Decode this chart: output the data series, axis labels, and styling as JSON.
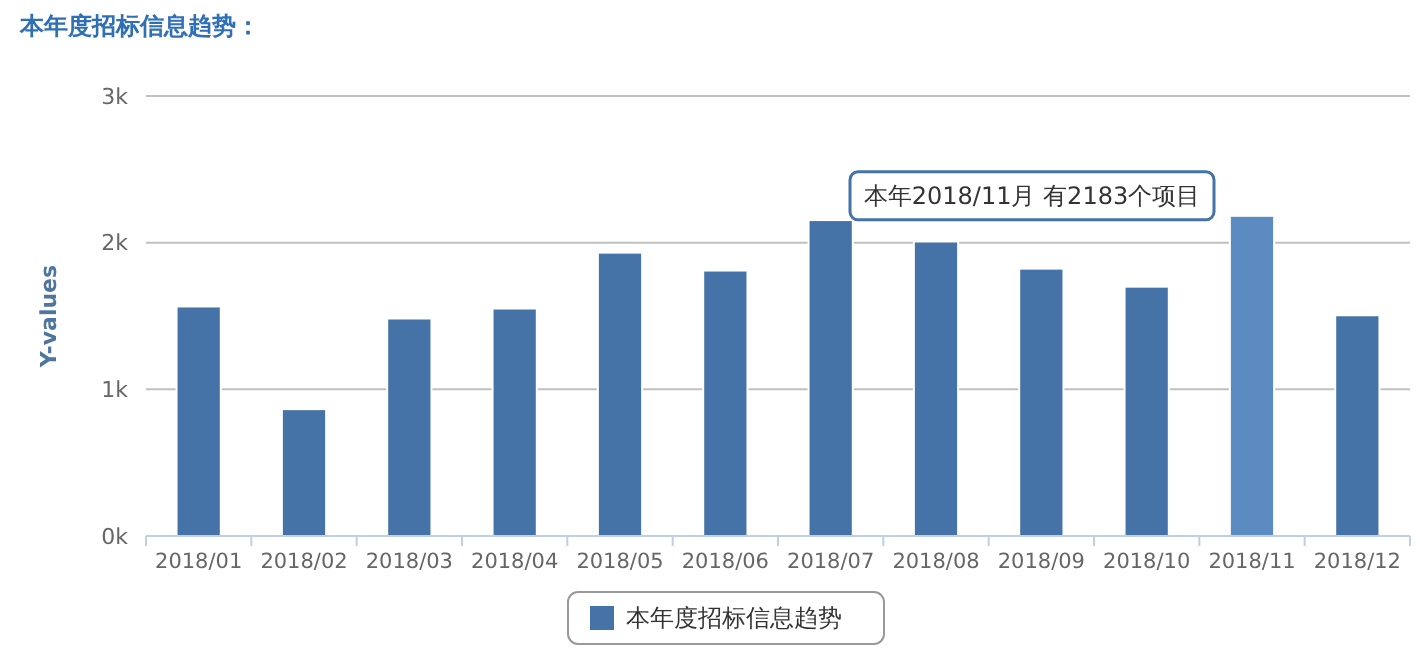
{
  "chart_data": {
    "type": "bar",
    "title": "本年度招标信息趋势：",
    "ylabel": "Y-values",
    "categories": [
      "2018/01",
      "2018/02",
      "2018/03",
      "2018/04",
      "2018/05",
      "2018/06",
      "2018/07",
      "2018/08",
      "2018/09",
      "2018/10",
      "2018/11",
      "2018/12"
    ],
    "series": [
      {
        "name": "本年度招标信息趋势",
        "color": "#4572a7",
        "colors": [
          "#4572a7",
          "#4572a7",
          "#4572a7",
          "#4572a7",
          "#4572a7",
          "#4572a7",
          "#4572a7",
          "#4572a7",
          "#4572a7",
          "#4572a7",
          "#5b8bc0",
          "#4572a7"
        ],
        "values": [
          1565,
          865,
          1483,
          1551,
          1932,
          1810,
          2154,
          2008,
          1823,
          1700,
          2183,
          1505
        ]
      }
    ],
    "ylim": [
      0,
      3000
    ],
    "yticks": [
      {
        "value": 0,
        "label": "0k"
      },
      {
        "value": 1000,
        "label": "1k"
      },
      {
        "value": 2000,
        "label": "2k"
      },
      {
        "value": 3000,
        "label": "3k"
      }
    ],
    "grid": "y",
    "legend": "bottom",
    "annotations": [
      {
        "text": "本年2018/11月 有2183个项目",
        "x": "2018/11",
        "y": 2183
      }
    ]
  }
}
